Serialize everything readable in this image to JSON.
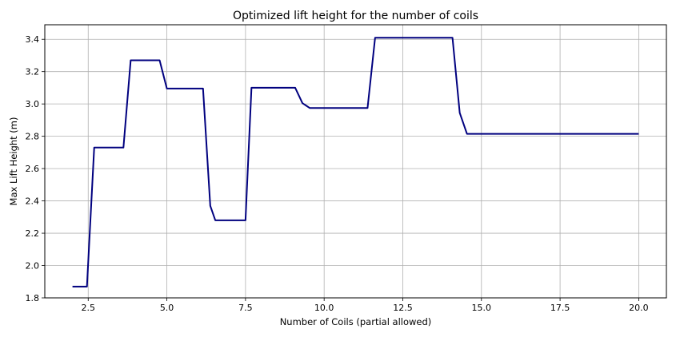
{
  "chart_data": {
    "type": "line",
    "title": "Optimized lift height for the number of coils",
    "xlabel": "Number of Coils (partial allowed)",
    "ylabel": "Max Lift Height (m)",
    "xlim": [
      1.12,
      20.88
    ],
    "ylim": [
      1.8,
      3.49
    ],
    "grid": true,
    "line_color": "#00007f",
    "x_ticks": [
      2.5,
      5.0,
      7.5,
      10.0,
      12.5,
      15.0,
      17.5,
      20.0
    ],
    "x_tick_labels": [
      "2.5",
      "5.0",
      "7.5",
      "10.0",
      "12.5",
      "15.0",
      "17.5",
      "20.0"
    ],
    "y_ticks": [
      1.8,
      2.0,
      2.2,
      2.4,
      2.6,
      2.8,
      3.0,
      3.2,
      3.4
    ],
    "y_tick_labels": [
      "1.8",
      "2.0",
      "2.2",
      "2.4",
      "2.6",
      "2.8",
      "3.0",
      "3.2",
      "3.4"
    ],
    "series": [
      {
        "x": [
          2.0,
          2.46,
          2.69,
          3.62,
          3.85,
          4.77,
          5.0,
          6.15,
          6.38,
          6.54,
          7.5,
          7.69,
          9.08,
          9.31,
          9.54,
          11.38,
          11.62,
          14.08,
          14.31,
          14.54,
          20.0
        ],
        "y": [
          1.87,
          1.87,
          2.73,
          2.73,
          3.27,
          3.27,
          3.095,
          3.095,
          2.37,
          2.28,
          2.28,
          3.1,
          3.1,
          3.005,
          2.975,
          2.975,
          3.41,
          3.41,
          2.945,
          2.815,
          2.815
        ]
      }
    ]
  }
}
